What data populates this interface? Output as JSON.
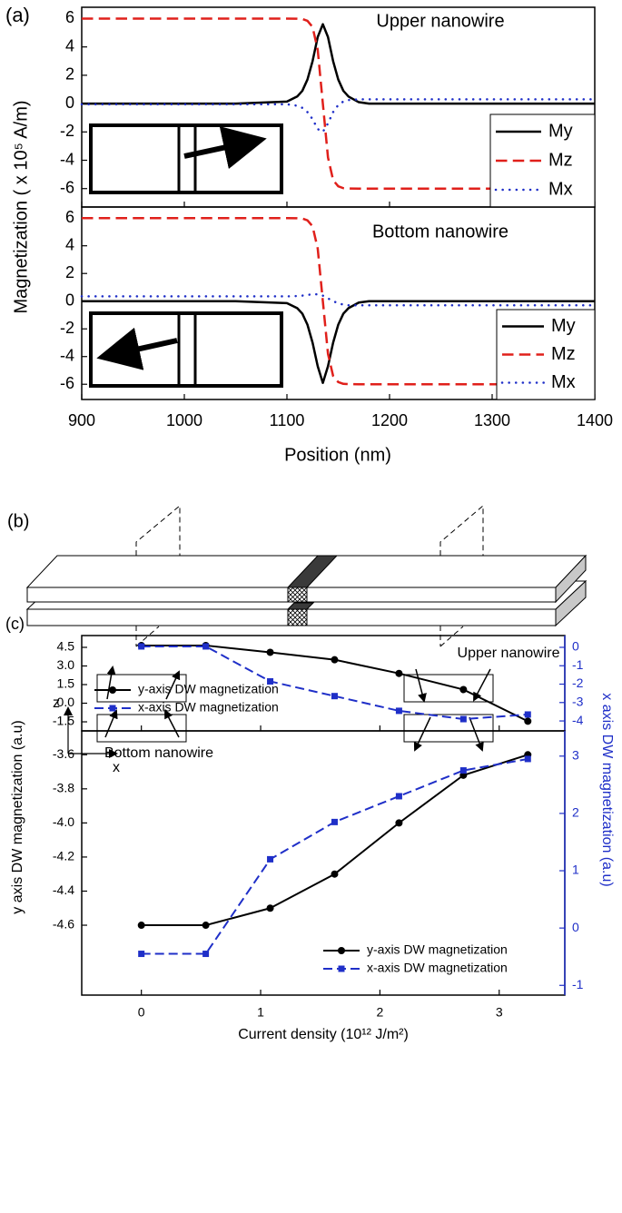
{
  "chart_data": [
    {
      "type": "line",
      "panel_label": "(a)",
      "ylabel": "Magnetization ( x 10⁵ A/m)",
      "annotation": "Upper nanowire",
      "x": [
        900,
        950,
        1000,
        1050,
        1100,
        1110,
        1115,
        1120,
        1125,
        1130,
        1135,
        1140,
        1145,
        1150,
        1155,
        1160,
        1170,
        1180,
        1200,
        1250,
        1300,
        1350,
        1400
      ],
      "xlim": [
        900,
        1400
      ],
      "xticks": [
        900,
        1000,
        1100,
        1200,
        1300,
        1400
      ],
      "ylim": [
        -7.3,
        6.8
      ],
      "yticks": [
        -6,
        -4,
        -2,
        0,
        2,
        4,
        6
      ],
      "legend": "lower right",
      "legend_frame": true,
      "series": [
        {
          "name": "My",
          "color": "#000000",
          "dash": "solid",
          "values": [
            0,
            0,
            0,
            0,
            0.14,
            0.5,
            0.9,
            1.7,
            3.0,
            4.7,
            5.6,
            4.7,
            3.0,
            1.7,
            0.9,
            0.5,
            0.1,
            0,
            0,
            0,
            0,
            0,
            0
          ]
        },
        {
          "name": "Mz",
          "color": "#e0201b",
          "dash": "dashed",
          "values": [
            6,
            6,
            6,
            6,
            6,
            5.99,
            5.97,
            5.84,
            5.4,
            3.8,
            0,
            -3.8,
            -5.4,
            -5.84,
            -5.97,
            -5.99,
            -6,
            -6,
            -6,
            -6,
            -6,
            -6,
            -6
          ]
        },
        {
          "name": "Mx",
          "color": "#1f2fc8",
          "dash": "dotted",
          "values": [
            -0.05,
            -0.05,
            -0.05,
            -0.05,
            -0.05,
            -0.15,
            -0.3,
            -0.6,
            -1.1,
            -1.8,
            -2.0,
            -1.4,
            -0.6,
            -0.1,
            0.15,
            0.25,
            0.3,
            0.3,
            0.3,
            0.3,
            0.3,
            0.3,
            0.3
          ]
        }
      ]
    },
    {
      "type": "line",
      "annotation": "Bottom nanowire",
      "xlabel": "Position (nm)",
      "x": [
        900,
        950,
        1000,
        1050,
        1100,
        1110,
        1115,
        1120,
        1125,
        1130,
        1135,
        1140,
        1145,
        1150,
        1155,
        1160,
        1170,
        1180,
        1200,
        1250,
        1300,
        1350,
        1400
      ],
      "xlim": [
        900,
        1400
      ],
      "xticks": [
        900,
        1000,
        1100,
        1200,
        1300,
        1400
      ],
      "ylim": [
        -7.1,
        6.8
      ],
      "yticks": [
        -6,
        -4,
        -2,
        0,
        2,
        4,
        6
      ],
      "legend": "lower right",
      "legend_frame": true,
      "series": [
        {
          "name": "My",
          "color": "#000000",
          "dash": "solid",
          "values": [
            0,
            0,
            0,
            0,
            -0.14,
            -0.5,
            -0.9,
            -1.7,
            -3.0,
            -4.7,
            -5.9,
            -4.7,
            -3.0,
            -1.7,
            -0.9,
            -0.5,
            -0.1,
            0,
            0,
            0,
            0,
            0,
            0
          ]
        },
        {
          "name": "Mz",
          "color": "#e0201b",
          "dash": "dashed",
          "values": [
            6,
            6,
            6,
            6,
            6,
            5.99,
            5.97,
            5.84,
            5.4,
            3.8,
            0,
            -3.8,
            -5.4,
            -5.84,
            -5.97,
            -5.99,
            -6,
            -6,
            -6,
            -6,
            -6,
            -6,
            -6
          ]
        },
        {
          "name": "Mx",
          "color": "#1f2fc8",
          "dash": "dotted",
          "values": [
            0.35,
            0.35,
            0.35,
            0.35,
            0.35,
            0.37,
            0.4,
            0.45,
            0.5,
            0.5,
            0.4,
            0.2,
            0,
            -0.15,
            -0.25,
            -0.3,
            -0.3,
            -0.3,
            -0.3,
            -0.3,
            -0.3,
            -0.3,
            -0.3
          ]
        }
      ]
    },
    {
      "type": "line",
      "panel_label": "(c)",
      "ylabel": "y axis DW magnetization (a.u)",
      "y2label": "x axis DW magnetization (a.u)",
      "y2color": "#1f2fc8",
      "annotation": "Upper nanowire",
      "x": [
        0,
        0.54,
        1.08,
        1.62,
        2.16,
        2.7,
        3.24
      ],
      "xlim": [
        -0.5,
        3.55
      ],
      "xticks": [
        0,
        1,
        2,
        3
      ],
      "ylim": [
        -2.23,
        5.45
      ],
      "yticks": [
        -1.5,
        {
          "value": 0,
          "label": "0.0"
        },
        1.5,
        {
          "value": 3,
          "label": "3.0"
        },
        4.5
      ],
      "y2lim": [
        -4.54,
        0.64
      ],
      "y2ticks": [
        -4,
        -3,
        -2,
        -1,
        0
      ],
      "legend": "lower left",
      "legend_frame": false,
      "series": [
        {
          "name": "y-axis DW magnetization",
          "color": "#000000",
          "dash": "solid",
          "marker": "circle",
          "values": [
            4.65,
            4.65,
            4.1,
            3.5,
            2.4,
            1.1,
            -1.45
          ]
        },
        {
          "name": "x-axis DW magnetization",
          "color": "#1f2fc8",
          "dash": "dashed",
          "marker": "square",
          "axis": "y2",
          "values": [
            0.05,
            0.05,
            -1.85,
            -2.65,
            -3.45,
            -3.9,
            -3.65
          ]
        }
      ]
    },
    {
      "type": "line",
      "annotation": "Bottom nanowire",
      "xlabel": "Current density (10¹² J/m²)",
      "y2color": "#1f2fc8",
      "x": [
        0,
        0.54,
        1.08,
        1.62,
        2.16,
        2.7,
        3.24
      ],
      "xlim": [
        -0.5,
        3.55
      ],
      "xticks": [
        0,
        1,
        2,
        3
      ],
      "ylim": [
        -5.01,
        -3.46
      ],
      "yticks": [
        -4.6,
        -4.4,
        -4.2,
        {
          "value": -4,
          "label": "-4.0"
        },
        -3.8,
        -3.6
      ],
      "y2lim": [
        -1.17,
        3.44
      ],
      "y2ticks": [
        -1,
        0,
        1,
        2,
        3
      ],
      "legend": "lower right",
      "legend_frame": false,
      "series": [
        {
          "name": "y-axis DW magnetization",
          "color": "#000000",
          "dash": "solid",
          "marker": "circle",
          "values": [
            -4.6,
            -4.6,
            -4.5,
            -4.3,
            -4.0,
            -3.72,
            -3.6
          ]
        },
        {
          "name": "x-axis DW magnetization",
          "color": "#1f2fc8",
          "dash": "dashed",
          "marker": "square",
          "axis": "y2",
          "values": [
            -0.45,
            -0.45,
            1.2,
            1.85,
            2.3,
            2.75,
            2.95
          ]
        }
      ]
    }
  ],
  "diagram": {
    "label": "(b)",
    "z_axis": "z",
    "x_axis": "x"
  }
}
